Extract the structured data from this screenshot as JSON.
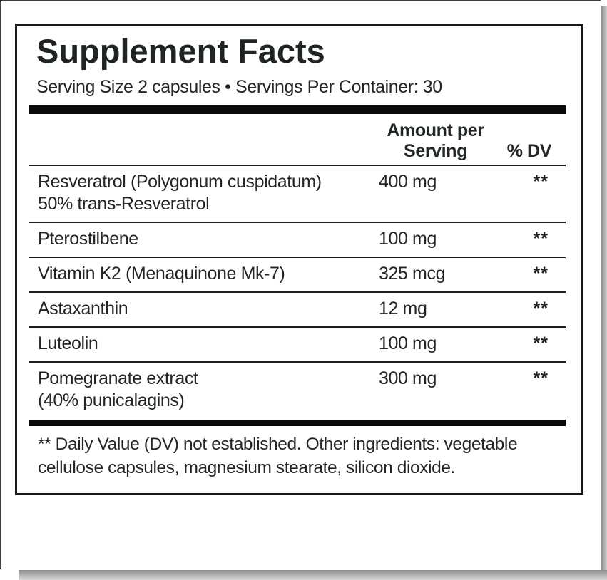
{
  "label": {
    "title": "Supplement Facts",
    "serving_line": "Serving Size 2 capsules • Servings Per Container: 30",
    "header": {
      "amount_line1": "Amount per",
      "amount_line2": "Serving",
      "dv": "% DV"
    },
    "rows": [
      {
        "name": "Resveratrol (Polygonum cuspidatum)",
        "name_line2": "50% trans-Resveratrol",
        "amount": "400 mg",
        "dv": "**"
      },
      {
        "name": "Pterostilbene",
        "name_line2": "",
        "amount": "100 mg",
        "dv": "**"
      },
      {
        "name": "Vitamin K2 (Menaquinone Mk-7)",
        "name_line2": "",
        "amount": "325 mcg",
        "dv": "**"
      },
      {
        "name": "Astaxanthin",
        "name_line2": "",
        "amount": "12 mg",
        "dv": "**"
      },
      {
        "name": "Luteolin",
        "name_line2": "",
        "amount": "100 mg",
        "dv": "**"
      },
      {
        "name": "Pomegranate extract",
        "name_line2": "(40% punicalagins)",
        "amount": "300 mg",
        "dv": "**"
      }
    ],
    "footnote": {
      "line1": "** Daily Value (DV) not established. Other ingredients: vegetable",
      "line2": "cellulose capsules, magnesium stearate, silicon dioxide."
    },
    "colors": {
      "text": "#212724",
      "rule": "#1c211e",
      "bar": "#0a0a0a",
      "shadow": "#8e8e8e"
    }
  }
}
